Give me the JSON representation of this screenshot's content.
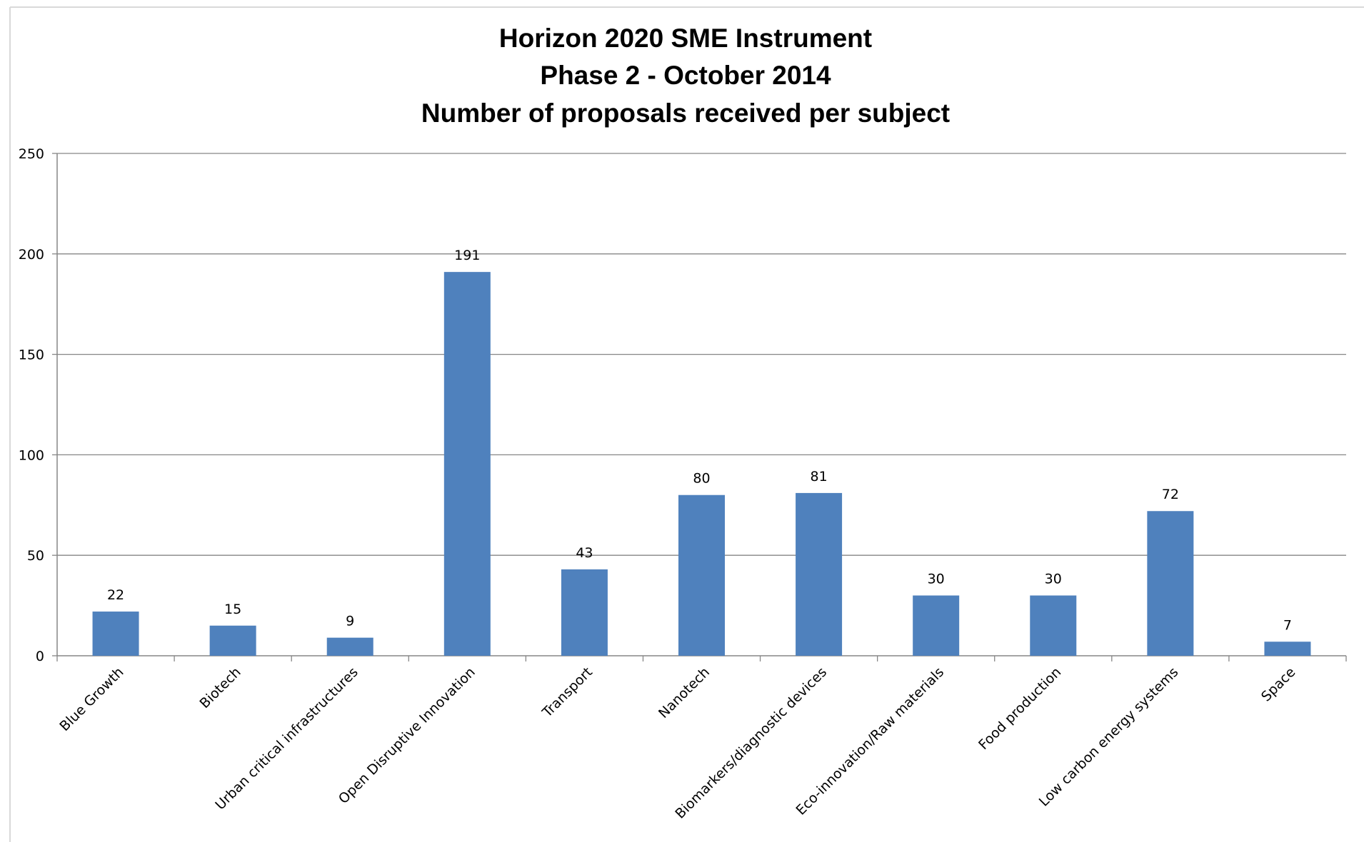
{
  "chart_data": {
    "type": "bar",
    "title": [
      "Horizon 2020 SME Instrument",
      "Phase 2 - October 2014",
      "Number of proposals received per subject"
    ],
    "categories": [
      "Blue Growth",
      "Biotech",
      "Urban critical infrastructures",
      "Open Disruptive Innovation",
      "Transport",
      "Nanotech",
      "Biomarkers/diagnostic devices",
      "Eco-innovation/Raw materials",
      "Food production",
      "Low carbon energy systems",
      "Space"
    ],
    "values": [
      22,
      15,
      9,
      191,
      43,
      80,
      81,
      30,
      30,
      72,
      7
    ],
    "ylim": [
      0,
      250
    ],
    "yticks": [
      0,
      50,
      100,
      150,
      200,
      250
    ],
    "xlabel": "",
    "ylabel": "",
    "grid": true,
    "legend": "none",
    "bar_color": "#4f81bd",
    "grid_color": "#868686"
  }
}
